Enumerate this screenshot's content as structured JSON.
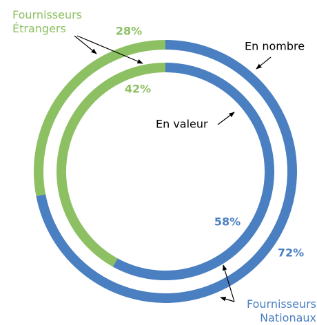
{
  "chart_data": {
    "type": "donut",
    "categories": [
      "Fournisseurs Étrangers",
      "Fournisseurs Nationaux"
    ],
    "colors": [
      "#8dc063",
      "#4a7fc1"
    ],
    "rings": [
      {
        "name": "En nombre",
        "values": [
          28,
          72
        ],
        "value_labels": [
          "28%",
          "72%"
        ]
      },
      {
        "name": "En valeur",
        "values": [
          42,
          58
        ],
        "value_labels": [
          "42%",
          "58%"
        ]
      }
    ]
  }
}
